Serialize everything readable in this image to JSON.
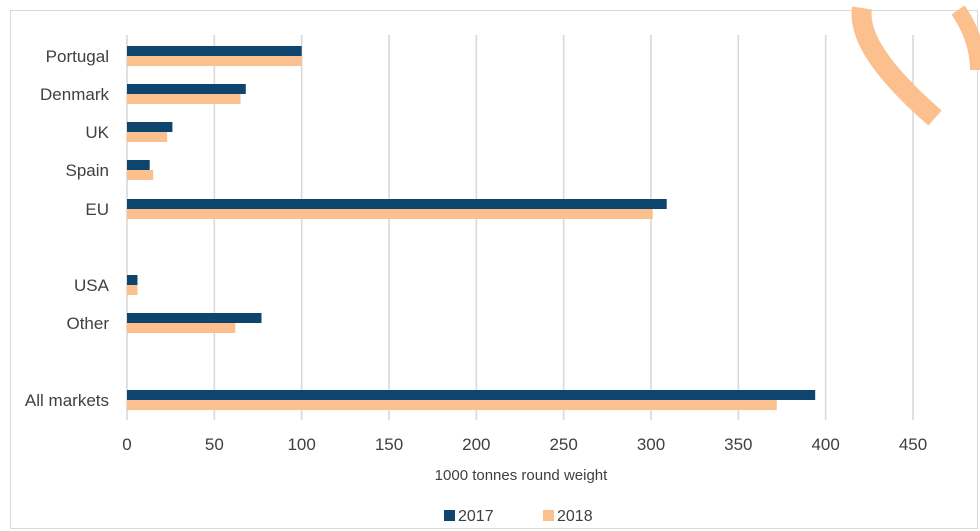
{
  "chart_data": {
    "type": "bar",
    "orientation": "horizontal",
    "categories": [
      "Portugal",
      "Denmark",
      "UK",
      "Spain",
      "EU",
      "USA",
      "Other",
      "All markets"
    ],
    "series": [
      {
        "name": "2017",
        "color": "#0e456e",
        "values": [
          100,
          68,
          26,
          13,
          309,
          6,
          77,
          394
        ]
      },
      {
        "name": "2018",
        "color": "#fcc08f",
        "values": [
          100,
          65,
          23,
          15,
          301,
          6,
          62,
          372
        ]
      }
    ],
    "xlabel": "1000 tonnes round weight",
    "xticks": [
      "0",
      "50",
      "100",
      "150",
      "200",
      "250",
      "300",
      "350",
      "400",
      "450"
    ],
    "xlim": [
      0,
      450
    ],
    "grid": true,
    "legend_position": "bottom"
  },
  "decoration": {
    "logo_color": "#fcc08f"
  }
}
